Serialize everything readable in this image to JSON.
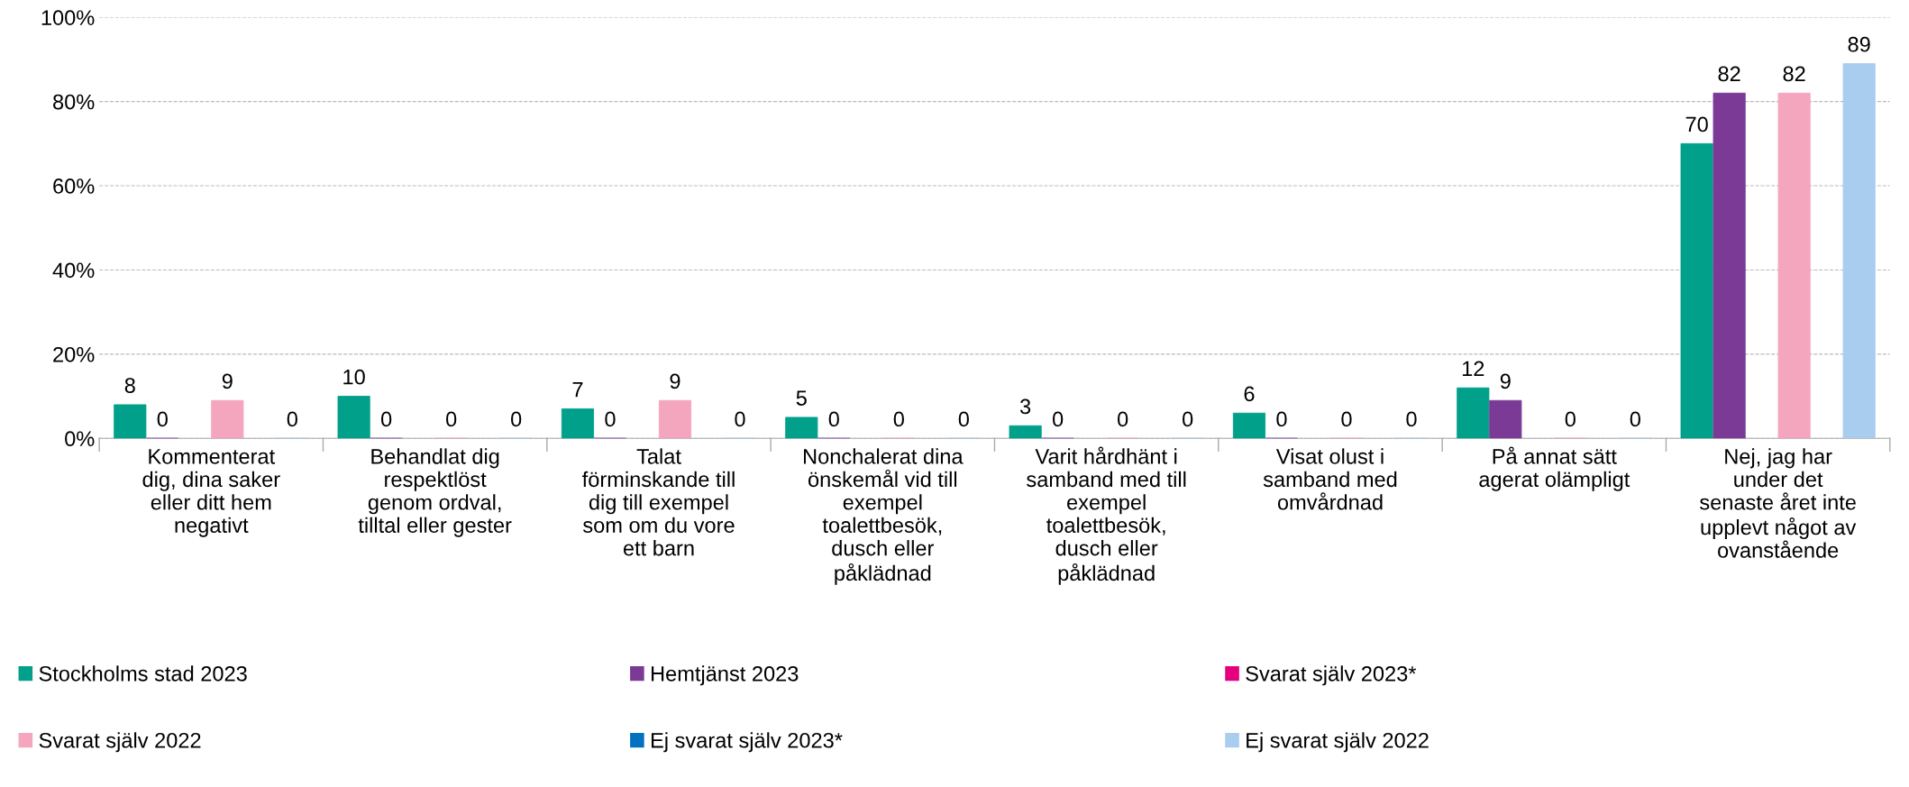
{
  "chart_data": {
    "type": "bar",
    "categories": [
      "Kommenterat\ndig, dina saker\neller ditt hem\nnegativt",
      "Behandlat dig\nrespektlöst\ngenom ordval,\ntilltal eller gester",
      "Talat\nförminskande till\ndig till exempel\nsom om du vore\nett barn",
      "Nonchalerat dina\nönskemål vid till\nexempel\ntoalettbesök,\ndusch eller\npåklädnad",
      "Varit hårdhänt i\nsamband med till\nexempel\ntoalettbesök,\ndusch eller\npåklädnad",
      "Visat olust i\nsamband med\nomvårdnad",
      "På annat sätt\nagerat olämpligt",
      "Nej, jag har\nunder det\nsenaste året inte\nupplevt något av\novanstående"
    ],
    "series": [
      {
        "name": "Stockholms stad 2023",
        "color": "#00A08A",
        "values": [
          8,
          10,
          7,
          5,
          3,
          6,
          12,
          70
        ]
      },
      {
        "name": "Hemtjänst 2023",
        "color": "#7B3A96",
        "values": [
          0,
          0,
          0,
          0,
          0,
          0,
          9,
          82
        ]
      },
      {
        "name": "Svarat själv 2023*",
        "color": "#E5007E",
        "values": [
          null,
          null,
          null,
          null,
          null,
          null,
          null,
          null
        ]
      },
      {
        "name": "Svarat själv 2022",
        "color": "#F4A6BF",
        "values": [
          9,
          0,
          9,
          0,
          0,
          0,
          0,
          82
        ]
      },
      {
        "name": "Ej svarat själv 2023*",
        "color": "#0070C0",
        "values": [
          null,
          null,
          null,
          null,
          null,
          null,
          null,
          null
        ]
      },
      {
        "name": "Ej svarat själv 2022",
        "color": "#A9CDEE",
        "values": [
          0,
          0,
          0,
          0,
          0,
          0,
          0,
          89
        ]
      }
    ],
    "ylim": [
      0,
      100
    ],
    "yticks": [
      {
        "value": 0,
        "label": "0%"
      },
      {
        "value": 20,
        "label": "20%"
      },
      {
        "value": 40,
        "label": "40%"
      },
      {
        "value": 60,
        "label": "60%"
      },
      {
        "value": 80,
        "label": "80%"
      },
      {
        "value": 100,
        "label": "100%"
      }
    ],
    "grid": "y",
    "legend": "bottom",
    "data_labels": true
  }
}
